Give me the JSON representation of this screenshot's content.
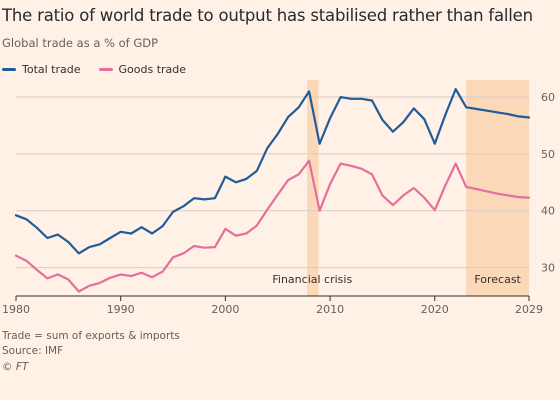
{
  "title": "The ratio of world trade to output has stabilised rather than fallen",
  "subtitle": "Global trade as a % of GDP",
  "legend": [
    {
      "name": "Total trade",
      "color": "#1F5C99"
    },
    {
      "name": "Goods trade",
      "color": "#E56E9E"
    }
  ],
  "footer": {
    "note": "Trade = sum of exports & imports",
    "source": "Source: IMF",
    "credit": "© FT"
  },
  "chart_data": {
    "type": "line",
    "title": "The ratio of world trade to output has stabilised rather than fallen",
    "subtitle": "Global trade as a % of GDP",
    "xlim": [
      1980,
      2029
    ],
    "ylim": [
      25,
      63
    ],
    "x_ticks": [
      1980,
      1990,
      2000,
      2010,
      2020,
      2029
    ],
    "y_ticks": [
      30,
      40,
      50,
      60
    ],
    "y_axis_position": "right",
    "grid": "horizontal",
    "legend_position": "top-left",
    "shaded_regions": [
      {
        "label": "Financial crisis",
        "from": 2007.8,
        "to": 2008.9,
        "color": "#FBD8B8"
      },
      {
        "label": "Forecast",
        "from": 2023,
        "to": 2029,
        "color": "#FBD8B8"
      }
    ],
    "series": [
      {
        "name": "Total trade",
        "color": "#1F5C99",
        "x": [
          1980,
          1981,
          1982,
          1983,
          1984,
          1985,
          1986,
          1987,
          1988,
          1989,
          1990,
          1991,
          1992,
          1993,
          1994,
          1995,
          1996,
          1997,
          1998,
          1999,
          2000,
          2001,
          2002,
          2003,
          2004,
          2005,
          2006,
          2007,
          2008,
          2009,
          2010,
          2011,
          2012,
          2013,
          2014,
          2015,
          2016,
          2017,
          2018,
          2019,
          2020,
          2021,
          2022,
          2023,
          2024,
          2025,
          2026,
          2027,
          2028,
          2029
        ],
        "values": [
          39.2,
          38.5,
          37,
          35.2,
          35.8,
          34.5,
          32.5,
          33.6,
          34.1,
          35.2,
          36.3,
          36,
          37.1,
          36,
          37.3,
          39.8,
          40.8,
          42.2,
          42,
          42.2,
          46,
          45,
          45.6,
          47,
          51,
          53.5,
          56.5,
          58.2,
          61,
          51.8,
          56.3,
          60,
          59.7,
          59.7,
          59.4,
          56,
          53.9,
          55.6,
          58,
          56.1,
          51.8,
          56.8,
          61.4,
          58.2,
          57.9,
          57.6,
          57.3,
          57,
          56.6,
          56.4
        ]
      },
      {
        "name": "Goods trade",
        "color": "#E56E9E",
        "x": [
          1980,
          1981,
          1982,
          1983,
          1984,
          1985,
          1986,
          1987,
          1988,
          1989,
          1990,
          1991,
          1992,
          1993,
          1994,
          1995,
          1996,
          1997,
          1998,
          1999,
          2000,
          2001,
          2002,
          2003,
          2004,
          2005,
          2006,
          2007,
          2008,
          2009,
          2010,
          2011,
          2012,
          2013,
          2014,
          2015,
          2016,
          2017,
          2018,
          2019,
          2020,
          2021,
          2022,
          2023,
          2024,
          2025,
          2026,
          2027,
          2028,
          2029
        ],
        "values": [
          32.1,
          31.2,
          29.6,
          28.1,
          28.8,
          27.9,
          25.8,
          26.8,
          27.3,
          28.2,
          28.8,
          28.5,
          29.1,
          28.3,
          29.3,
          31.8,
          32.5,
          33.8,
          33.5,
          33.6,
          36.8,
          35.6,
          36,
          37.4,
          40.2,
          42.8,
          45.4,
          46.4,
          48.8,
          40,
          44.7,
          48.3,
          47.9,
          47.4,
          46.4,
          42.7,
          41,
          42.7,
          44,
          42.3,
          40.1,
          44.4,
          48.3,
          44.2,
          43.8,
          43.4,
          43,
          42.7,
          42.4,
          42.3
        ]
      }
    ]
  }
}
